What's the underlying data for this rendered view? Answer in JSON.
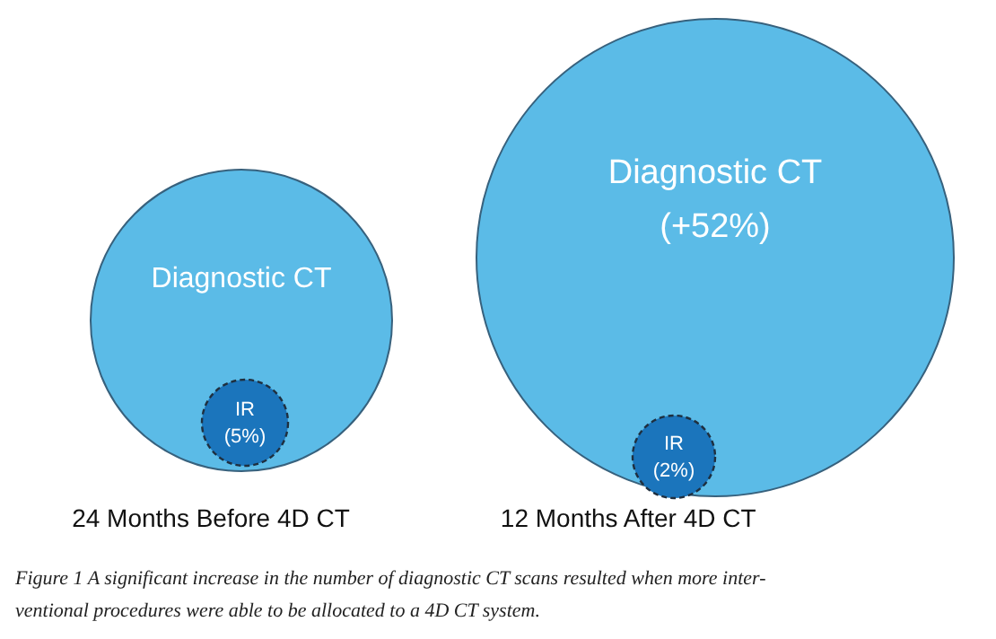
{
  "chart_data": {
    "type": "other",
    "categories": [
      "24 Months Before 4D CT",
      "12 Months After 4D CT"
    ],
    "series": [
      {
        "name": "Diagnostic CT",
        "color": "#5bbbe7",
        "values": [
          null,
          52
        ],
        "value_labels": [
          null,
          "(+52%)"
        ]
      },
      {
        "name": "IR",
        "color": "#1b75bc",
        "values": [
          5,
          2
        ],
        "value_labels": [
          "(5%)",
          "(2%)"
        ]
      }
    ],
    "annotations": [
      "Figure 1  A significant increase in the number of diagnostic CT scans resulted when more inter-\nventional procedures were able to be allocated to a  4D CT system."
    ]
  }
}
